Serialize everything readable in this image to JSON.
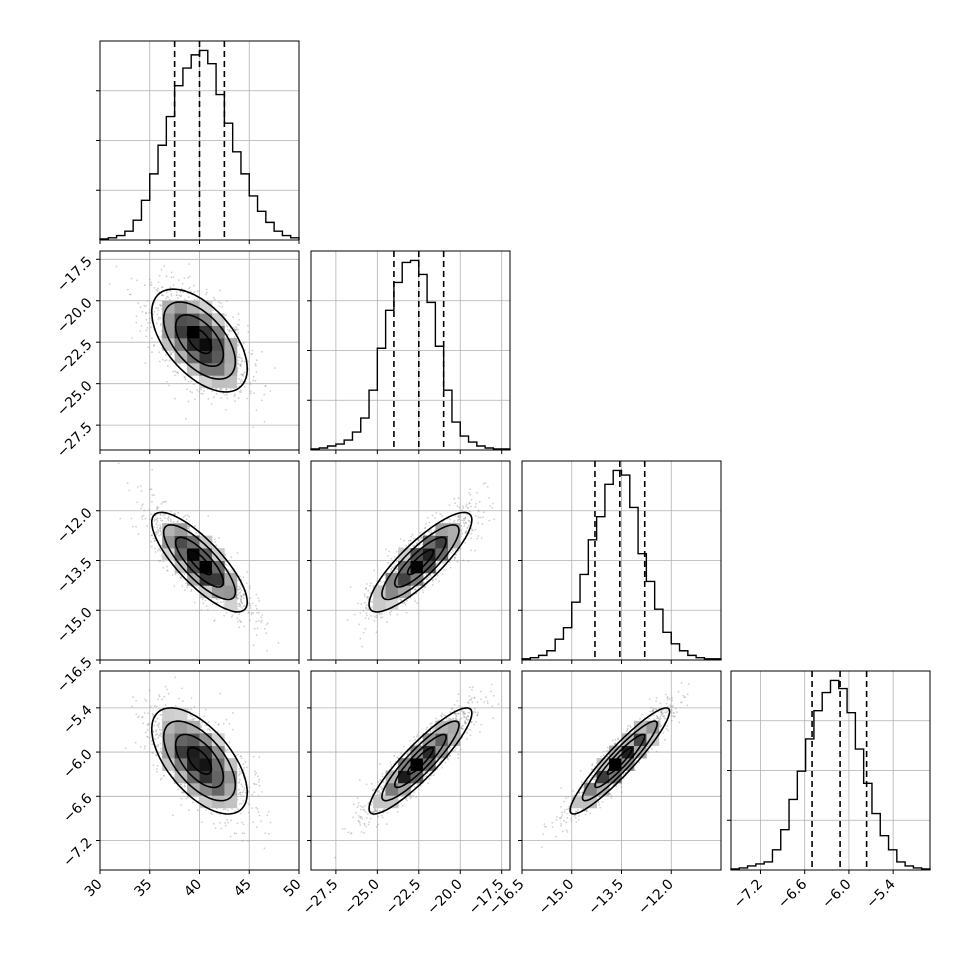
{
  "chart_data": {
    "type": "corner",
    "parameters": [
      {
        "hist": {
          "range": [
            30,
            50
          ],
          "counts": [
            0.5,
            1,
            2,
            4,
            9,
            18,
            30,
            43,
            56,
            70,
            78,
            84,
            86,
            80,
            66,
            53,
            40,
            30,
            20,
            13,
            8,
            4,
            2,
            1
          ],
          "quantiles": [
            37.5,
            40.0,
            42.5
          ]
        },
        "xticks": [
          "30",
          "35",
          "40",
          "45",
          "50"
        ],
        "xtick_values": [
          30,
          35,
          40,
          45,
          50
        ]
      },
      {
        "hist": {
          "range": [
            -29,
            -17
          ],
          "counts": [
            0.5,
            1,
            2,
            3,
            5,
            9,
            16,
            30,
            51,
            70,
            84,
            94,
            95,
            88,
            74,
            52,
            30,
            14,
            7,
            4,
            2,
            1,
            0.5,
            0.5
          ],
          "quantiles": [
            -24.0,
            -22.5,
            -21.0
          ]
        },
        "ticks": [
          "−27.5",
          "−25.0",
          "−22.5",
          "−20.0",
          "−17.5"
        ],
        "tick_values": [
          -27.5,
          -25.0,
          -22.5,
          -20.0,
          -17.5
        ]
      },
      {
        "hist": {
          "range": [
            -16.5,
            -10.5
          ],
          "counts": [
            0.5,
            1,
            2,
            4,
            9,
            14,
            25,
            37,
            52,
            62,
            76,
            82,
            80,
            66,
            46,
            34,
            22,
            12,
            7,
            4,
            2,
            1,
            0.5,
            0.5
          ],
          "quantiles": [
            -14.3,
            -13.55,
            -12.8
          ]
        },
        "ticks": [
          "−16.5",
          "−15.0",
          "−13.5",
          "−12.0"
        ],
        "tick_values": [
          -16.5,
          -15.0,
          -13.5,
          -12.0
        ]
      },
      {
        "hist": {
          "range": [
            -7.6,
            -4.9
          ],
          "counts": [
            0.5,
            1,
            2,
            3,
            4,
            10,
            20,
            35,
            49,
            65,
            79,
            88,
            94,
            90,
            78,
            60,
            43,
            28,
            17,
            10,
            4,
            2,
            1,
            0.5
          ],
          "quantiles": [
            -6.5,
            -6.12,
            -5.76
          ]
        },
        "ticks": [
          "−7.2",
          "−6.6",
          "−6.0",
          "−5.4"
        ],
        "tick_values": [
          -7.2,
          -6.6,
          -6.0,
          -5.4
        ]
      }
    ],
    "means": [
      40.0,
      -22.4,
      -13.55,
      -6.12
    ],
    "sigmas": [
      2.4,
      1.55,
      0.75,
      0.36
    ],
    "correlations": [
      [
        1.0,
        -0.55,
        -0.8,
        -0.6
      ],
      [
        -0.55,
        1.0,
        0.85,
        0.9
      ],
      [
        -0.8,
        0.85,
        1.0,
        0.93
      ],
      [
        -0.6,
        0.9,
        0.93,
        1.0
      ]
    ],
    "contour_levels_sigma": [
      0.5,
      1.0,
      1.5,
      2.0
    ],
    "grid": true,
    "colors": {
      "line": "#000000",
      "grid": "#b0b0b0",
      "points": "#9a9a9a",
      "frame": "#000000"
    }
  }
}
